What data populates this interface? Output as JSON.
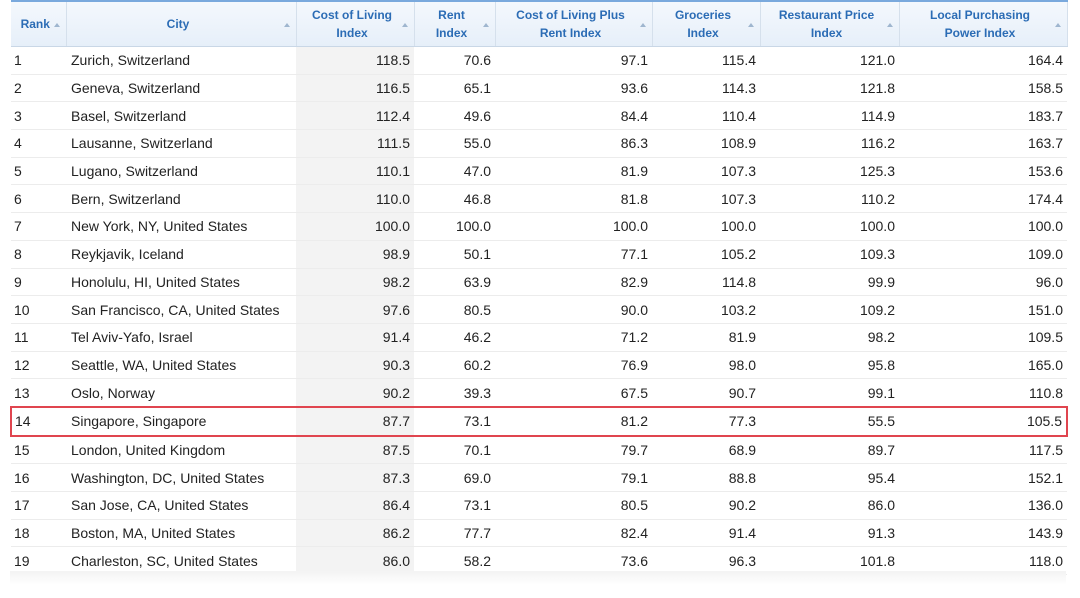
{
  "table": {
    "header": [
      [
        "Rank"
      ],
      [
        "City"
      ],
      [
        "Cost of Living",
        "Index"
      ],
      [
        "Rent",
        "Index"
      ],
      [
        "Cost of Living Plus",
        "Rent Index"
      ],
      [
        "Groceries",
        "Index"
      ],
      [
        "Restaurant Price",
        "Index"
      ],
      [
        "Local Purchasing",
        "Power Index"
      ]
    ],
    "highlight_row": 13,
    "rows": [
      [
        "1",
        "Zurich, Switzerland",
        "118.5",
        "70.6",
        "97.1",
        "115.4",
        "121.0",
        "164.4"
      ],
      [
        "2",
        "Geneva, Switzerland",
        "116.5",
        "65.1",
        "93.6",
        "114.3",
        "121.8",
        "158.5"
      ],
      [
        "3",
        "Basel, Switzerland",
        "112.4",
        "49.6",
        "84.4",
        "110.4",
        "114.9",
        "183.7"
      ],
      [
        "4",
        "Lausanne, Switzerland",
        "111.5",
        "55.0",
        "86.3",
        "108.9",
        "116.2",
        "163.7"
      ],
      [
        "5",
        "Lugano, Switzerland",
        "110.1",
        "47.0",
        "81.9",
        "107.3",
        "125.3",
        "153.6"
      ],
      [
        "6",
        "Bern, Switzerland",
        "110.0",
        "46.8",
        "81.8",
        "107.3",
        "110.2",
        "174.4"
      ],
      [
        "7",
        "New York, NY, United States",
        "100.0",
        "100.0",
        "100.0",
        "100.0",
        "100.0",
        "100.0"
      ],
      [
        "8",
        "Reykjavik, Iceland",
        "98.9",
        "50.1",
        "77.1",
        "105.2",
        "109.3",
        "109.0"
      ],
      [
        "9",
        "Honolulu, HI, United States",
        "98.2",
        "63.9",
        "82.9",
        "114.8",
        "99.9",
        "96.0"
      ],
      [
        "10",
        "San Francisco, CA, United States",
        "97.6",
        "80.5",
        "90.0",
        "103.2",
        "109.2",
        "151.0"
      ],
      [
        "11",
        "Tel Aviv-Yafo, Israel",
        "91.4",
        "46.2",
        "71.2",
        "81.9",
        "98.2",
        "109.5"
      ],
      [
        "12",
        "Seattle, WA, United States",
        "90.3",
        "60.2",
        "76.9",
        "98.0",
        "95.8",
        "165.0"
      ],
      [
        "13",
        "Oslo, Norway",
        "90.2",
        "39.3",
        "67.5",
        "90.7",
        "99.1",
        "110.8"
      ],
      [
        "14",
        "Singapore, Singapore",
        "87.7",
        "73.1",
        "81.2",
        "77.3",
        "55.5",
        "105.5"
      ],
      [
        "15",
        "London, United Kingdom",
        "87.5",
        "70.1",
        "79.7",
        "68.9",
        "89.7",
        "117.5"
      ],
      [
        "16",
        "Washington, DC, United States",
        "87.3",
        "69.0",
        "79.1",
        "88.8",
        "95.4",
        "152.1"
      ],
      [
        "17",
        "San Jose, CA, United States",
        "86.4",
        "73.1",
        "80.5",
        "90.2",
        "86.0",
        "136.0"
      ],
      [
        "18",
        "Boston, MA, United States",
        "86.2",
        "77.7",
        "82.4",
        "91.4",
        "91.3",
        "143.9"
      ],
      [
        "19",
        "Charleston, SC, United States",
        "86.0",
        "58.2",
        "73.6",
        "96.3",
        "101.8",
        "118.0"
      ]
    ]
  }
}
